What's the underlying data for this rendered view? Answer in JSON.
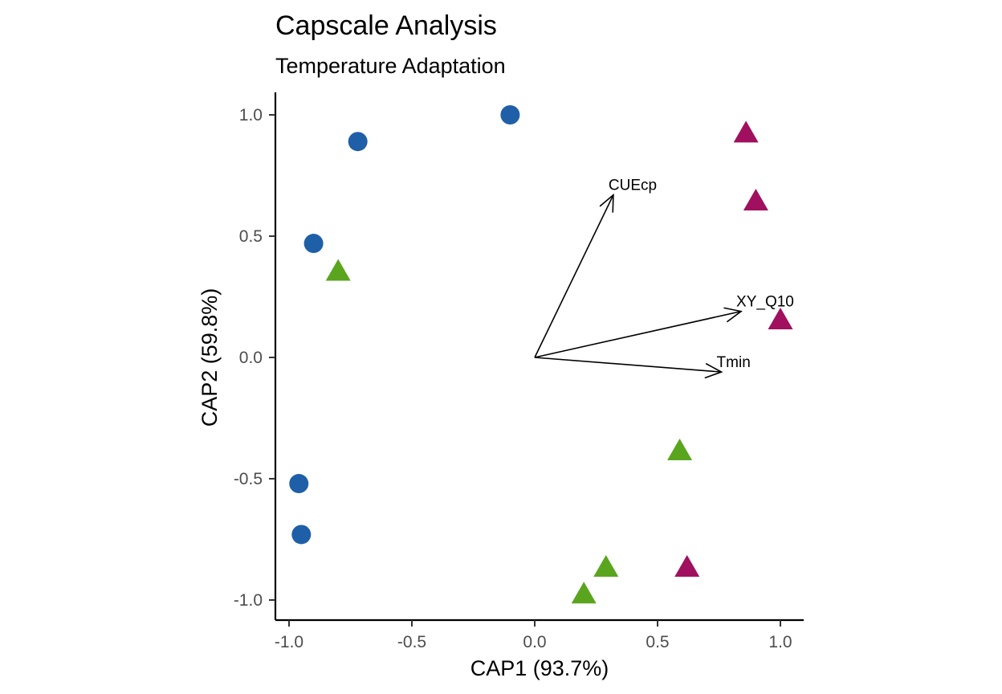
{
  "chart_data": {
    "type": "scatter",
    "title": "Capscale Analysis",
    "subtitle": "Temperature Adaptation",
    "xlabel": "CAP1 (93.7%)",
    "ylabel": "CAP2 (59.8%)",
    "xlim": [
      -1.05,
      1.1
    ],
    "ylim": [
      -1.08,
      1.09
    ],
    "xticks": [
      -1.0,
      -0.5,
      0.0,
      0.5,
      1.0
    ],
    "xtick_labels": [
      "-1.0",
      "-0.5",
      "0.0",
      "0.5",
      "1.0"
    ],
    "yticks": [
      -1.0,
      -0.5,
      0.0,
      0.5,
      1.0
    ],
    "ytick_labels": [
      "-1.0",
      "-0.5",
      "0.0",
      "0.5",
      "1.0"
    ],
    "grid": false,
    "legend": "none",
    "series": [
      {
        "shape": "circle",
        "color": "#1f5fa8",
        "points": [
          {
            "x": -0.1,
            "y": 1.0
          },
          {
            "x": -0.72,
            "y": 0.89
          },
          {
            "x": -0.9,
            "y": 0.47
          },
          {
            "x": -0.96,
            "y": -0.52
          },
          {
            "x": -0.95,
            "y": -0.73
          }
        ]
      },
      {
        "shape": "triangle",
        "color": "#5aa51e",
        "points": [
          {
            "x": -0.8,
            "y": 0.35
          },
          {
            "x": 0.59,
            "y": -0.39
          },
          {
            "x": 0.29,
            "y": -0.87
          },
          {
            "x": 0.2,
            "y": -0.98
          }
        ]
      },
      {
        "shape": "triangle",
        "color": "#a0105e",
        "points": [
          {
            "x": 0.86,
            "y": 0.92
          },
          {
            "x": 0.9,
            "y": 0.64
          },
          {
            "x": 1.0,
            "y": 0.15
          },
          {
            "x": 0.62,
            "y": -0.87
          }
        ]
      }
    ],
    "arrows": [
      {
        "label": "CUEcp",
        "x": 0.32,
        "y": 0.67
      },
      {
        "label": "XY_Q10",
        "x": 0.84,
        "y": 0.19
      },
      {
        "label": "Tmin",
        "x": 0.76,
        "y": -0.06
      }
    ]
  }
}
